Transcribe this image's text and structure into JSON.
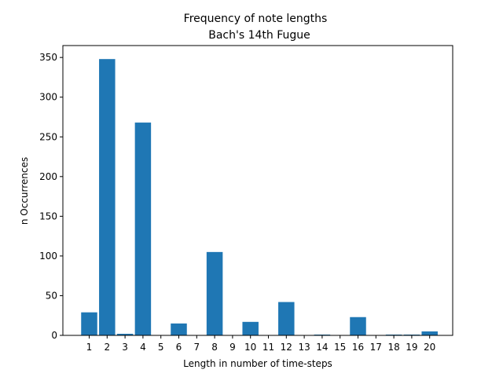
{
  "chart_data": {
    "type": "bar",
    "title": "Frequency of note lengths",
    "subtitle": "Bach's 14th Fugue",
    "xlabel": "Length in number of time-steps",
    "ylabel": "n Occurrences",
    "categories": [
      "1",
      "2",
      "3",
      "4",
      "5",
      "6",
      "7",
      "8",
      "9",
      "10",
      "11",
      "12",
      "13",
      "14",
      "15",
      "16",
      "17",
      "18",
      "19",
      "20"
    ],
    "values": [
      29,
      348,
      2,
      268,
      0,
      15,
      0,
      105,
      0,
      17,
      0,
      42,
      0,
      1,
      0,
      23,
      0,
      1,
      1,
      5
    ],
    "ylim": [
      0,
      365
    ],
    "yticks": [
      0,
      50,
      100,
      150,
      200,
      250,
      300,
      350
    ],
    "bar_color": "#1f77b4",
    "grid": false,
    "legend": false
  }
}
